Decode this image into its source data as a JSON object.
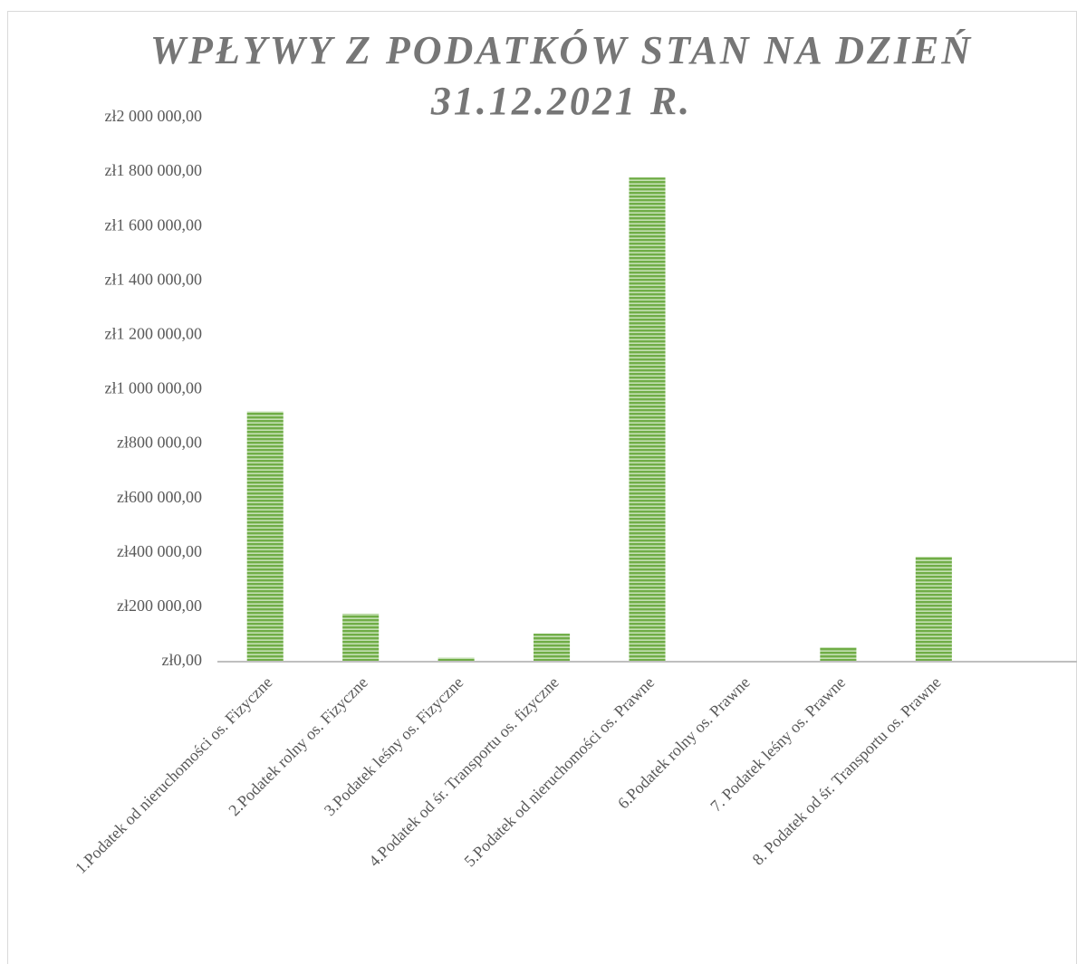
{
  "chart_data": {
    "type": "bar",
    "title": "WPŁYWY Z PODATKÓW  STAN NA DZIEŃ 31.12.2021 R.",
    "categories": [
      "1.Podatek od nieruchomości os. Fizyczne",
      "2.Podatek rolny os. Fizyczne",
      "3.Podatek leśny os. Fizyczne",
      "4.Podatek od śr. Transportu os. fizyczne",
      "5.Podatek od nieruchomości os. Prawne",
      "6.Podatek rolny os. Prawne",
      "7. Podatek leśny os. Prawne",
      "8. Podatek od śr. Transportu os. Prawne",
      null
    ],
    "values": [
      920000,
      176000,
      15000,
      103000,
      1780000,
      0,
      53000,
      386000,
      null
    ],
    "color": "#70ad47",
    "ylim": [
      0,
      2000000
    ],
    "yticks": [
      {
        "value": 0,
        "label": "zł0,00"
      },
      {
        "value": 200000,
        "label": "zł200 000,00"
      },
      {
        "value": 400000,
        "label": "zł400 000,00"
      },
      {
        "value": 600000,
        "label": "zł600 000,00"
      },
      {
        "value": 800000,
        "label": "zł800 000,00"
      },
      {
        "value": 1000000,
        "label": "zł1 000 000,00"
      },
      {
        "value": 1200000,
        "label": "zł1 200 000,00"
      },
      {
        "value": 1400000,
        "label": "zł1 400 000,00"
      },
      {
        "value": 1600000,
        "label": "zł1 600 000,00"
      },
      {
        "value": 1800000,
        "label": "zł1 800 000,00"
      },
      {
        "value": 2000000,
        "label": "zł2 000 000,00"
      }
    ],
    "grid": false
  }
}
